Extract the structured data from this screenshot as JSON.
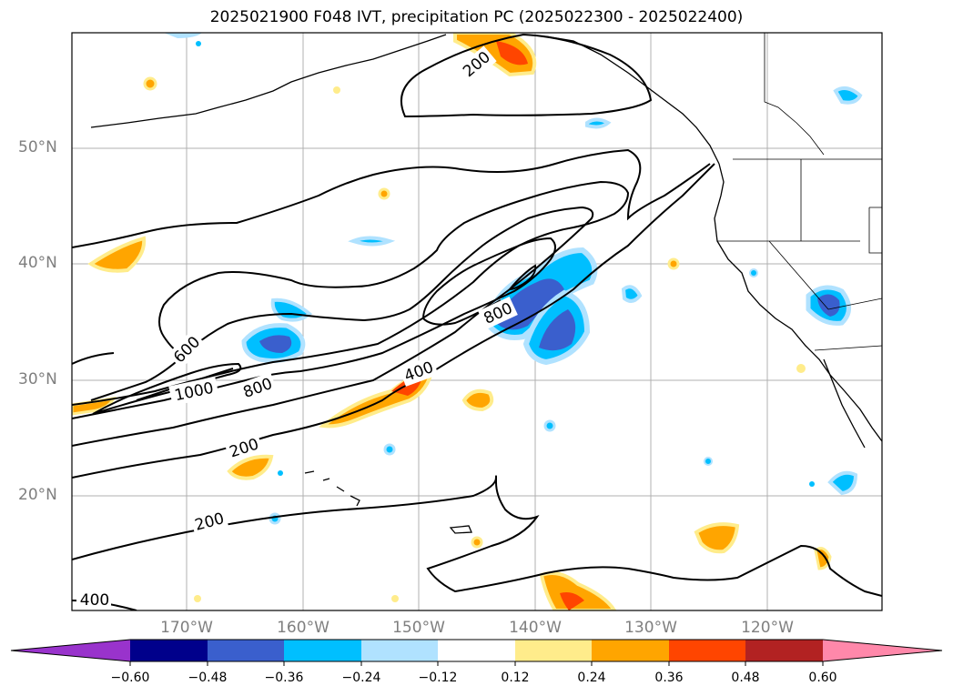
{
  "title": "2025021900 F048 IVT, precipitation PC (2025022300 - 2025022400)",
  "lat_labels": [
    "50°N",
    "40°N",
    "30°N",
    "20°N"
  ],
  "lon_labels": [
    "170°W",
    "160°W",
    "150°W",
    "140°W",
    "130°W",
    "120°W"
  ],
  "contour_labels": [
    "200",
    "600",
    "1000",
    "800",
    "400",
    "800",
    "200",
    "200",
    "400"
  ],
  "colorbar": {
    "ticks": [
      "−0.60",
      "−0.48",
      "−0.36",
      "−0.24",
      "−0.12",
      "0.12",
      "0.24",
      "0.36",
      "0.48",
      "0.60"
    ],
    "colors": [
      "#9933cc",
      "#00008b",
      "#3a5fcd",
      "#00bfff",
      "#b0e2ff",
      "#ffffff",
      "#ffec8b",
      "#ffa500",
      "#ff4500",
      "#b22222",
      "#ff88aa"
    ]
  }
}
